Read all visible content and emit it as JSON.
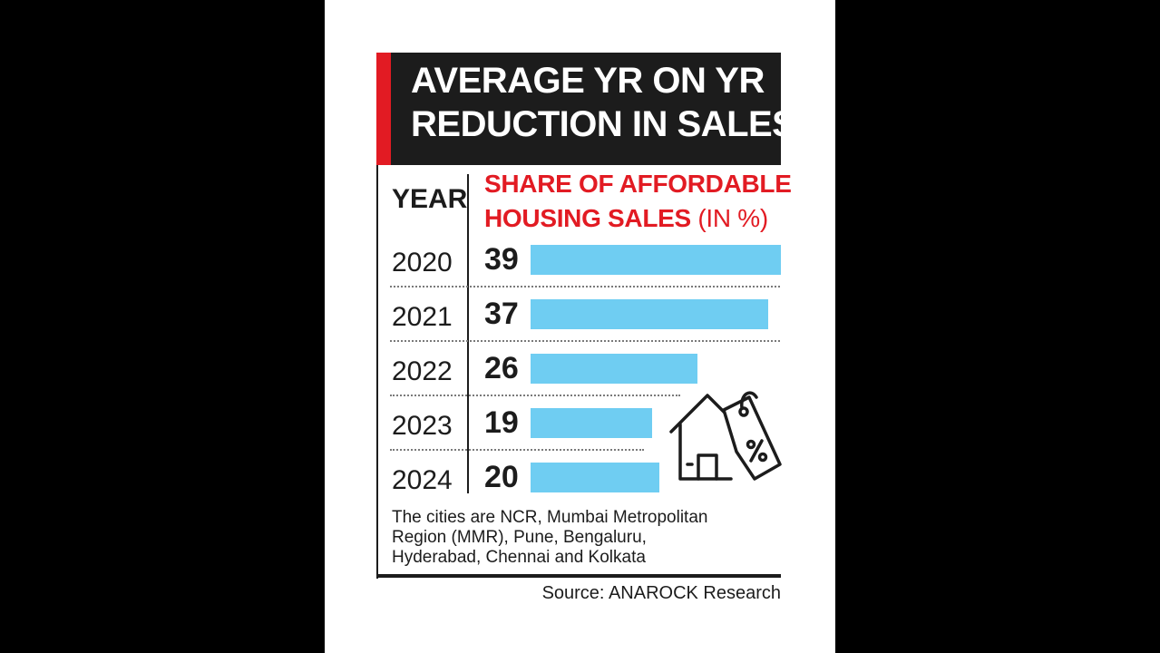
{
  "title": {
    "line1": "AVERAGE YR ON YR",
    "line2": "REDUCTION IN SALES"
  },
  "headers": {
    "year": "YEAR",
    "value_line1": "SHARE OF AFFORDABLE",
    "value_line2": "HOUSING SALES",
    "value_unit": "(IN %)"
  },
  "chart_data": {
    "type": "bar",
    "orientation": "horizontal",
    "categories": [
      "2020",
      "2021",
      "2022",
      "2023",
      "2024"
    ],
    "values": [
      39,
      37,
      26,
      19,
      20
    ],
    "title": "AVERAGE YR ON YR REDUCTION IN SALES",
    "xlabel": "SHARE OF AFFORDABLE HOUSING SALES (IN %)",
    "ylabel": "YEAR",
    "bar_color": "#6fcdf2",
    "data_labels": true,
    "grid": false,
    "legend": "none"
  },
  "footnote": {
    "line1": "The cities are NCR, Mumbai Metropolitan",
    "line2": "Region (MMR), Pune, Bengaluru,",
    "line3": "Hyderabad, Chennai and Kolkata"
  },
  "source": "Source: ANAROCK Research",
  "icons": {
    "illustration": "house-with-percent-tag-icon"
  },
  "colors": {
    "accent_red": "#e21b23",
    "title_bg": "#1c1c1c",
    "bar": "#6fcdf2"
  }
}
